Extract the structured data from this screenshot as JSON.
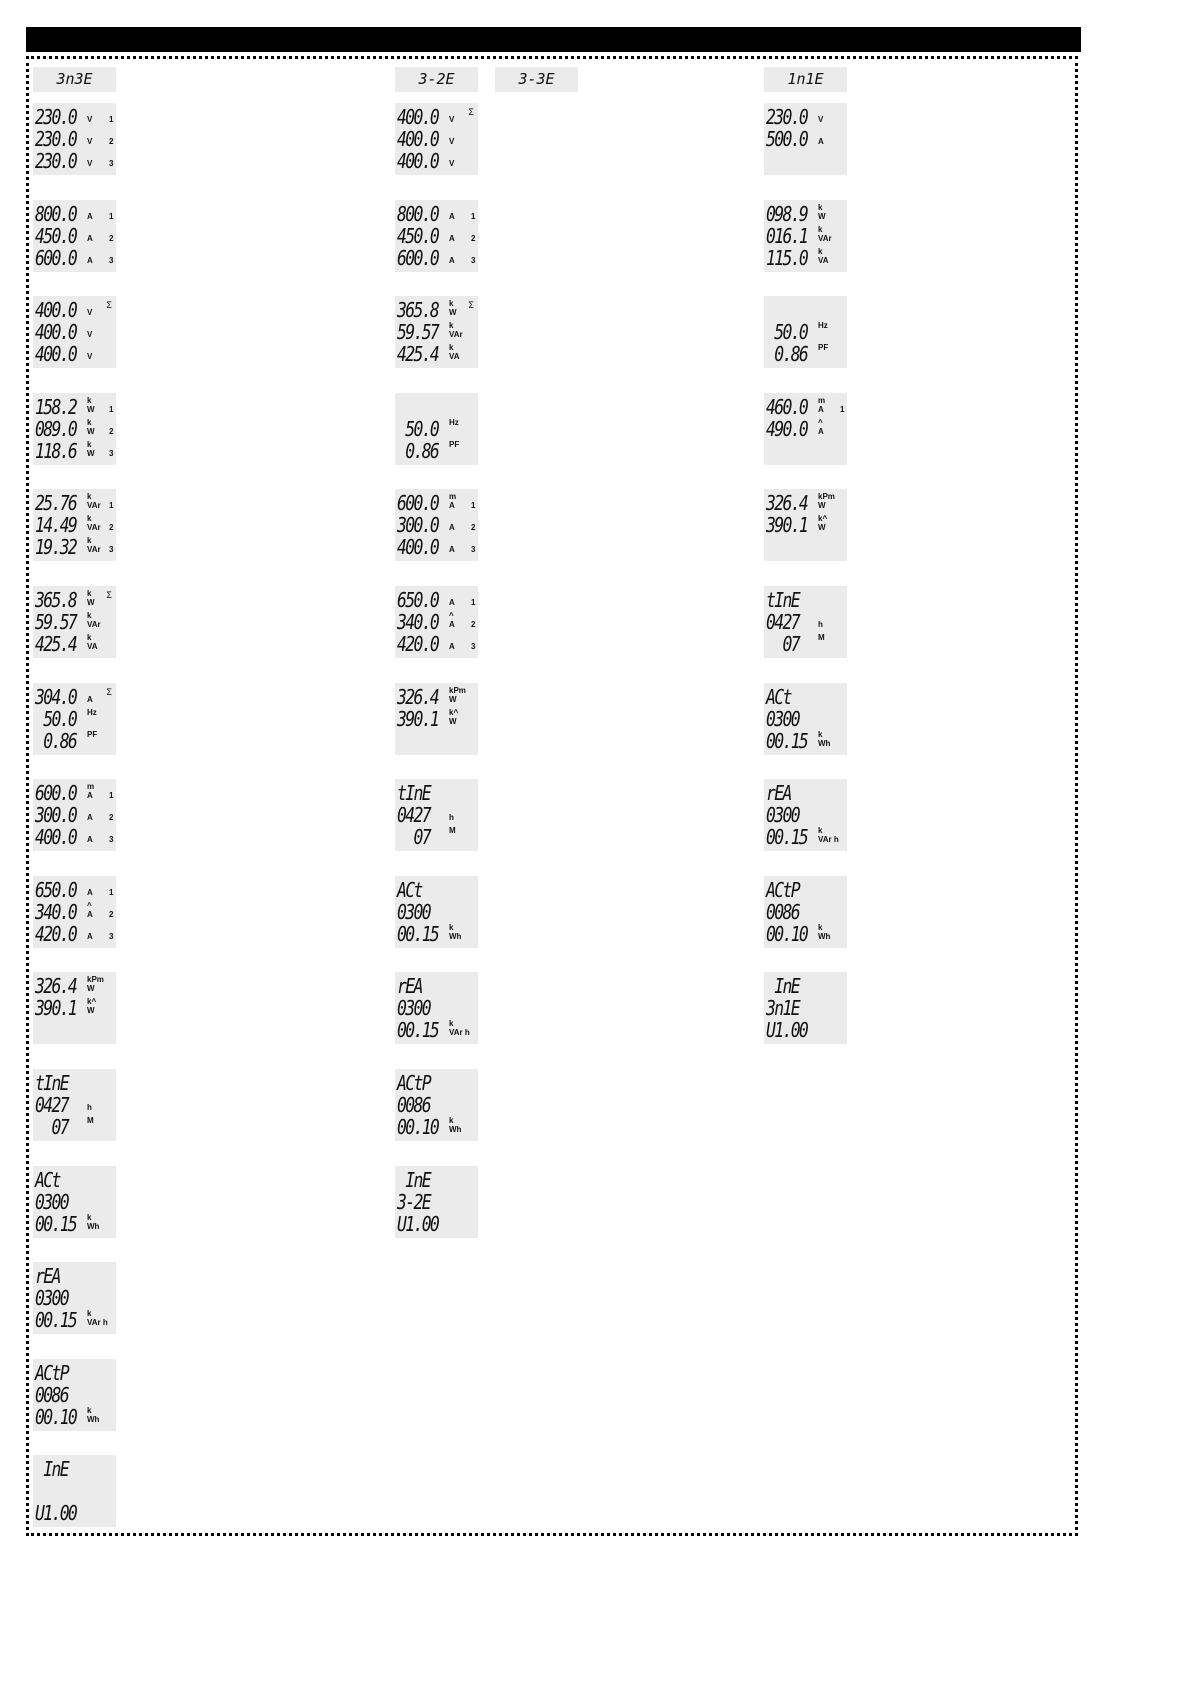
{
  "columns": [
    {
      "header": "3n3E",
      "panels": [
        {
          "lines": [
            {
              "v": "230.0",
              "u": "V",
              "p": "1"
            },
            {
              "v": "230.0",
              "u": "V",
              "p": "2"
            },
            {
              "v": "230.0",
              "u": "V",
              "p": "3"
            }
          ]
        },
        {
          "lines": [
            {
              "v": "800.0",
              "u": "A",
              "p": "1"
            },
            {
              "v": "450.0",
              "u": "A",
              "p": "2"
            },
            {
              "v": "600.0",
              "u": "A",
              "p": "3"
            }
          ]
        },
        {
          "sigma": "Σ",
          "lines": [
            {
              "v": "400.0",
              "u": "V"
            },
            {
              "v": "400.0",
              "u": "V"
            },
            {
              "v": "400.0",
              "u": "V"
            }
          ]
        },
        {
          "lines": [
            {
              "v": "158.2",
              "pre": "k",
              "u": "W",
              "p": "1"
            },
            {
              "v": "089.0",
              "pre": "k",
              "u": "W",
              "p": "2"
            },
            {
              "v": "118.6",
              "pre": "k",
              "u": "W",
              "p": "3"
            }
          ]
        },
        {
          "lines": [
            {
              "v": "25.76",
              "pre": "k",
              "u": "VAr",
              "p": "1"
            },
            {
              "v": "14.49",
              "pre": "k",
              "u": "VAr",
              "p": "2"
            },
            {
              "v": "19.32",
              "pre": "k",
              "u": "VAr",
              "p": "3"
            }
          ]
        },
        {
          "sigma": "Σ",
          "lines": [
            {
              "v": "365.8",
              "pre": "k",
              "u": "W"
            },
            {
              "v": "59.57",
              "pre": "k",
              "u": "VAr"
            },
            {
              "v": "425.4",
              "pre": "k",
              "u": "VA"
            }
          ]
        },
        {
          "sigma": "Σ",
          "lines": [
            {
              "v": "304.0",
              "u": "A"
            },
            {
              "v": " 50.0",
              "pre": "Hz"
            },
            {
              "v": " 0.86",
              "pre": "PF"
            }
          ]
        },
        {
          "lines": [
            {
              "v": "600.0",
              "pre": "m",
              "u": "A",
              "p": "1"
            },
            {
              "v": "300.0",
              "u": "A",
              "p": "2"
            },
            {
              "v": "400.0",
              "u": "A",
              "p": "3"
            }
          ]
        },
        {
          "lines": [
            {
              "v": "650.0",
              "u": "A",
              "p": "1"
            },
            {
              "v": "340.0",
              "pre": "^",
              "u": "A",
              "p": "2"
            },
            {
              "v": "420.0",
              "u": "A",
              "p": "3"
            }
          ]
        },
        {
          "lines": [
            {
              "v": "326.4",
              "pre": "kPm",
              "u": "W"
            },
            {
              "v": "390.1",
              "pre": "k^",
              "u": "W"
            }
          ]
        },
        {
          "lines": [
            {
              "v": "tInE"
            },
            {
              "v": "0427",
              "u": "h"
            },
            {
              "v": "  07",
              "pre": "M"
            }
          ]
        },
        {
          "lines": [
            {
              "v": "ACt"
            },
            {
              "v": "0300"
            },
            {
              "v": "00.15",
              "pre": "k",
              "u": "Wh"
            }
          ]
        },
        {
          "lines": [
            {
              "v": "rEA"
            },
            {
              "v": "0300"
            },
            {
              "v": "00.15",
              "pre": "k",
              "u": "VAr h"
            }
          ]
        },
        {
          "lines": [
            {
              "v": "ACtP"
            },
            {
              "v": "0086"
            },
            {
              "v": "00.10",
              "pre": "k",
              "u": "Wh"
            }
          ]
        },
        {
          "lines": [
            {
              "v": " InE"
            },
            {
              "v": ""
            },
            {
              "v": "U1.00"
            }
          ]
        }
      ]
    },
    {
      "header": "3-2E",
      "panels": [
        {
          "sigma": "Σ",
          "lines": [
            {
              "v": "400.0",
              "u": "V"
            },
            {
              "v": "400.0",
              "u": "V"
            },
            {
              "v": "400.0",
              "u": "V"
            }
          ]
        },
        {
          "lines": [
            {
              "v": "800.0",
              "u": "A",
              "p": "1"
            },
            {
              "v": "450.0",
              "u": "A",
              "p": "2"
            },
            {
              "v": "600.0",
              "u": "A",
              "p": "3"
            }
          ]
        },
        {
          "sigma": "Σ",
          "lines": [
            {
              "v": "365.8",
              "pre": "k",
              "u": "W"
            },
            {
              "v": "59.57",
              "pre": "k",
              "u": "VAr"
            },
            {
              "v": "425.4",
              "pre": "k",
              "u": "VA"
            }
          ]
        },
        {
          "lines": [
            {
              "v": ""
            },
            {
              "v": " 50.0",
              "pre": "Hz"
            },
            {
              "v": " 0.86",
              "pre": "PF"
            }
          ]
        },
        {
          "lines": [
            {
              "v": "600.0",
              "pre": "m",
              "u": "A",
              "p": "1"
            },
            {
              "v": "300.0",
              "u": "A",
              "p": "2"
            },
            {
              "v": "400.0",
              "u": "A",
              "p": "3"
            }
          ]
        },
        {
          "lines": [
            {
              "v": "650.0",
              "u": "A",
              "p": "1"
            },
            {
              "v": "340.0",
              "pre": "^",
              "u": "A",
              "p": "2"
            },
            {
              "v": "420.0",
              "u": "A",
              "p": "3"
            }
          ]
        },
        {
          "lines": [
            {
              "v": "326.4",
              "pre": "kPm",
              "u": "W"
            },
            {
              "v": "390.1",
              "pre": "k^",
              "u": "W"
            }
          ]
        },
        {
          "lines": [
            {
              "v": "tInE"
            },
            {
              "v": "0427",
              "u": "h"
            },
            {
              "v": "  07",
              "pre": "M"
            }
          ]
        },
        {
          "lines": [
            {
              "v": "ACt"
            },
            {
              "v": "0300"
            },
            {
              "v": "00.15",
              "pre": "k",
              "u": "Wh"
            }
          ]
        },
        {
          "lines": [
            {
              "v": "rEA"
            },
            {
              "v": "0300"
            },
            {
              "v": "00.15",
              "pre": "k",
              "u": "VAr h"
            }
          ]
        },
        {
          "lines": [
            {
              "v": "ACtP"
            },
            {
              "v": "0086"
            },
            {
              "v": "00.10",
              "pre": "k",
              "u": "Wh"
            }
          ]
        },
        {
          "lines": [
            {
              "v": " InE"
            },
            {
              "v": "3-2E"
            },
            {
              "v": "U1.00"
            }
          ]
        }
      ]
    },
    {
      "header": "3-3E",
      "panels": []
    },
    {
      "header": "1n1E",
      "panels": [
        {
          "lines": [
            {
              "v": "230.0",
              "u": "V"
            },
            {
              "v": "500.0",
              "u": "A"
            }
          ]
        },
        {
          "lines": [
            {
              "v": "098.9",
              "pre": "k",
              "u": "W"
            },
            {
              "v": "016.1",
              "pre": "k",
              "u": "VAr"
            },
            {
              "v": "115.0",
              "pre": "k",
              "u": "VA"
            }
          ]
        },
        {
          "lines": [
            {
              "v": ""
            },
            {
              "v": " 50.0",
              "pre": "Hz"
            },
            {
              "v": " 0.86",
              "pre": "PF"
            }
          ]
        },
        {
          "lines": [
            {
              "v": "460.0",
              "pre": "m",
              "u": "A",
              "p": "1"
            },
            {
              "v": "490.0",
              "pre": "^",
              "u": "A"
            }
          ]
        },
        {
          "lines": [
            {
              "v": "326.4",
              "pre": "kPm",
              "u": "W"
            },
            {
              "v": "390.1",
              "pre": "k^",
              "u": "W"
            }
          ]
        },
        {
          "lines": [
            {
              "v": "tInE"
            },
            {
              "v": "0427",
              "u": "h"
            },
            {
              "v": "  07",
              "pre": "M"
            }
          ]
        },
        {
          "lines": [
            {
              "v": "ACt"
            },
            {
              "v": "0300"
            },
            {
              "v": "00.15",
              "pre": "k",
              "u": "Wh"
            }
          ]
        },
        {
          "lines": [
            {
              "v": "rEA"
            },
            {
              "v": "0300"
            },
            {
              "v": "00.15",
              "pre": "k",
              "u": "VAr h"
            }
          ]
        },
        {
          "lines": [
            {
              "v": "ACtP"
            },
            {
              "v": "0086"
            },
            {
              "v": "00.10",
              "pre": "k",
              "u": "Wh"
            }
          ]
        },
        {
          "lines": [
            {
              "v": " InE"
            },
            {
              "v": "3n1E"
            },
            {
              "v": "U1.00"
            }
          ]
        }
      ]
    }
  ]
}
